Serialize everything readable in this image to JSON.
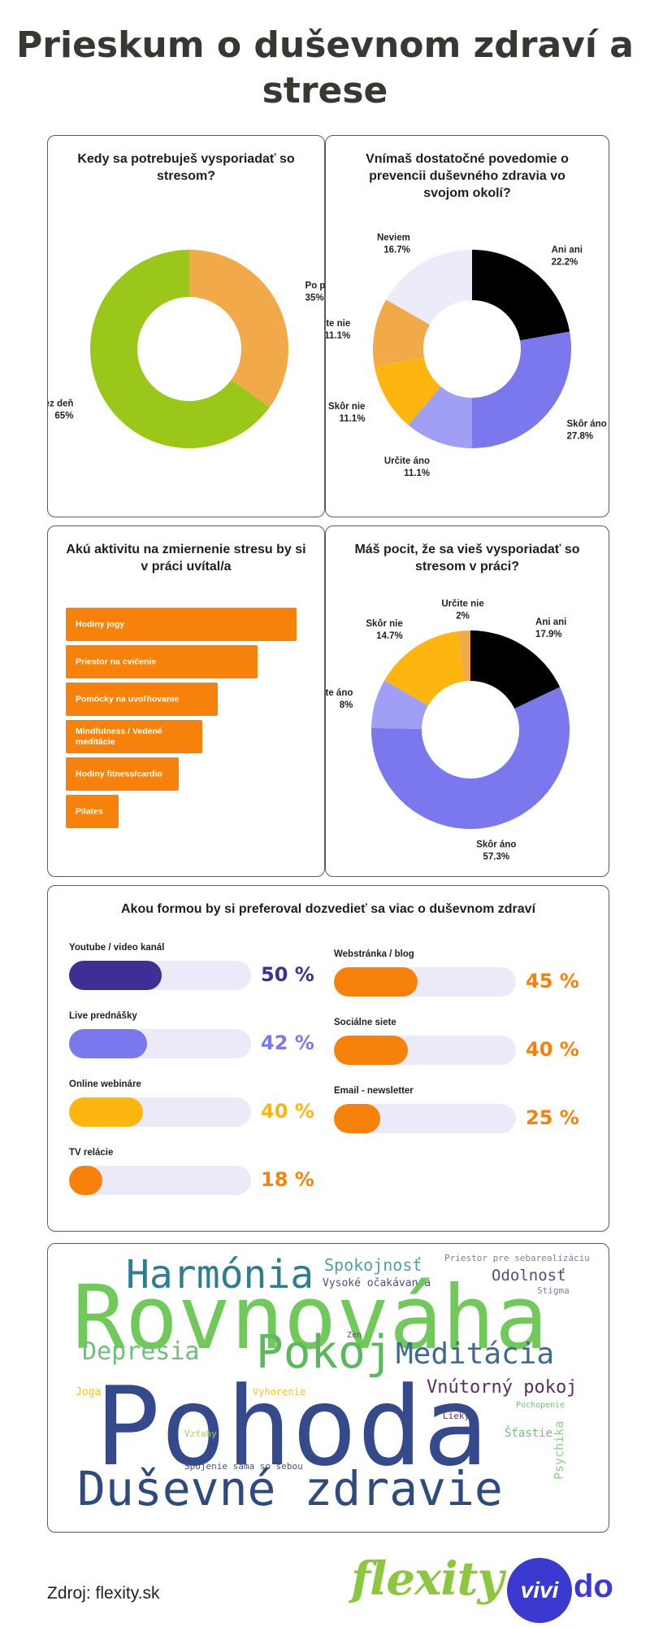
{
  "title": "Prieskum o duševnom zdraví a strese",
  "colors": {
    "accent_orange": "#f7820b",
    "dark_purple": "#3d2f96",
    "light_purple": "#7b78ee",
    "yellow": "#fdb60f",
    "green": "#9bc61a"
  },
  "chart_data": [
    {
      "type": "pie",
      "donut": true,
      "title": "Kedy sa potrebuješ vysporiadať so stresom?",
      "slices": [
        {
          "label": "Po práci",
          "value": 35,
          "display": "35%",
          "color": "#f2a94a"
        },
        {
          "label": "Cez deň",
          "value": 65,
          "display": "65%",
          "color": "#9bc61a"
        }
      ]
    },
    {
      "type": "pie",
      "donut": true,
      "title": "Vnímaš dostatočné povedomie o prevencii duševného zdravia vo svojom okolí?",
      "slices": [
        {
          "label": "Ani ani",
          "value": 22.2,
          "display": "22.2%",
          "color": "#000000"
        },
        {
          "label": "Skôr áno",
          "value": 27.8,
          "display": "27.8%",
          "color": "#7b78ee"
        },
        {
          "label": "Určite áno",
          "value": 11.1,
          "display": "11.1%",
          "color": "#a19ef5"
        },
        {
          "label": "Skôr nie",
          "value": 11.1,
          "display": "11.1%",
          "color": "#fdb60f"
        },
        {
          "label": "Určite nie",
          "value": 11.1,
          "display": "11.1%",
          "color": "#f2a94a"
        },
        {
          "label": "Neviem",
          "value": 16.7,
          "display": "16.7%",
          "color": "#ebebf9"
        }
      ]
    },
    {
      "type": "bar",
      "orientation": "horizontal",
      "title": "Akú aktivitu na zmiernenie stresu by si v práci uvítal/a",
      "categories": [
        "Hodiny jogy",
        "Priestor na cvičenie",
        "Pomôcky na uvoľňovanie",
        "Mindfulness / Vedené meditácie",
        "Hodiny fitness/cardio",
        "Pilates"
      ],
      "values": [
        100,
        83,
        66,
        59,
        49,
        23
      ],
      "color": "#f7820b"
    },
    {
      "type": "pie",
      "donut": true,
      "title": "Máš pocit, že sa vieš vysporiadať so stresom v práci?",
      "slices": [
        {
          "label": "Ani ani",
          "value": 17.9,
          "display": "17.9%",
          "color": "#000000"
        },
        {
          "label": "Skôr áno",
          "value": 57.3,
          "display": "57.3%",
          "color": "#7b78ee"
        },
        {
          "label": "Určite áno",
          "value": 8,
          "display": "8%",
          "color": "#a19ef5"
        },
        {
          "label": "Skôr nie",
          "value": 14.7,
          "display": "14.7%",
          "color": "#fdb60f"
        },
        {
          "label": "Určite nie",
          "value": 2,
          "display": "2%",
          "color": "#f2a94a"
        }
      ]
    },
    {
      "type": "bar",
      "orientation": "horizontal",
      "title": "Akou formou by si preferoval dozvedieť sa viac o duševnom zdraví",
      "categories": [
        "Youtube / video kanál",
        "Live prednášky",
        "Online webináre",
        "TV relácie",
        "Webstránka / blog",
        "Sociálne siete",
        "Email - newsletter"
      ],
      "values": [
        50,
        42,
        40,
        18,
        45,
        40,
        25
      ],
      "display": [
        "50 %",
        "42 %",
        "40 %",
        "18 %",
        "45 %",
        "40 %",
        "25 %"
      ],
      "colors": [
        "#3d2f96",
        "#7b78ee",
        "#fdb60f",
        "#f7820b",
        "#f7820b",
        "#f7820b",
        "#f7820b"
      ],
      "pct_colors": [
        "#3d2f96",
        "#7b78ee",
        "#fdb60f",
        "#f7820b",
        "#f7820b",
        "#f7820b",
        "#f7820b"
      ]
    }
  ],
  "wordcloud": {
    "words": [
      {
        "text": "Harmónia",
        "color": "#2f7d8f"
      },
      {
        "text": "Spokojnosť",
        "color": "#4ba3a0"
      },
      {
        "text": "Priestor pre sebarealizáciu",
        "color": "#7b7fa6"
      },
      {
        "text": "Odolnosť",
        "color": "#4a4f7a"
      },
      {
        "text": "Vysoké očakávania",
        "color": "#4a4f7a"
      },
      {
        "text": "Stigma",
        "color": "#7b7fa6"
      },
      {
        "text": "Rovnováha",
        "color": "#72c95b"
      },
      {
        "text": "Zen",
        "color": "#4a4f7a"
      },
      {
        "text": "Depresia",
        "color": "#6fc07a"
      },
      {
        "text": "Pokoj",
        "color": "#5cb85c"
      },
      {
        "text": "Meditácia",
        "color": "#3f6a8f"
      },
      {
        "text": "Vnútorný pokoj",
        "color": "#57305f"
      },
      {
        "text": "Joga",
        "color": "#f2c230"
      },
      {
        "text": "Vyhorenie",
        "color": "#f2c230"
      },
      {
        "text": "Pochopenie",
        "color": "#6fc07a"
      },
      {
        "text": "Pohoda",
        "color": "#354a8a"
      },
      {
        "text": "Lieky",
        "color": "#57305f"
      },
      {
        "text": "Šťastie",
        "color": "#6fc07a"
      },
      {
        "text": "Vzťahy",
        "color": "#a3d15a"
      },
      {
        "text": "Psychika",
        "color": "#8fd18a"
      },
      {
        "text": "Spojenie sama so sebou",
        "color": "#4a4f7a"
      },
      {
        "text": "Duševné zdravie",
        "color": "#2f4a7d"
      }
    ]
  },
  "footer": {
    "source": "Zdroj: flexity.sk",
    "logo_flexity": "flexity",
    "logo_vivi": "vivi",
    "logo_do": "do"
  }
}
